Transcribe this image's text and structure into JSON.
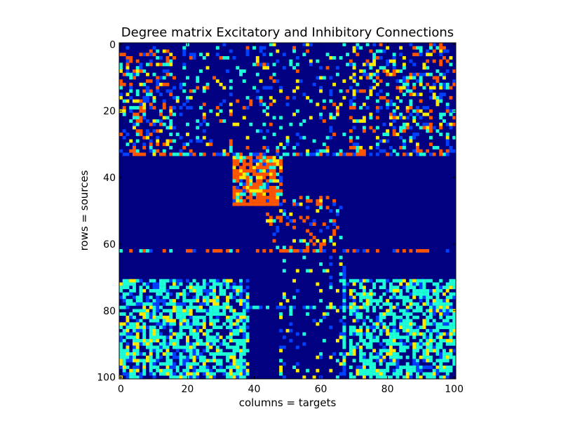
{
  "chart_data": {
    "type": "heatmap",
    "title": "Degree matrix Excitatory and Inhibitory Connections",
    "xlabel": "columns = targets",
    "ylabel": "rows = sources",
    "rows": 101,
    "cols": 101,
    "xlim": [
      0,
      100
    ],
    "ylim": [
      100,
      0
    ],
    "x_ticks": [
      0,
      20,
      40,
      60,
      80,
      100
    ],
    "y_ticks": [
      0,
      20,
      40,
      60,
      80,
      100
    ],
    "grid": false,
    "colormap": "jet",
    "colormap_stops": [
      "#000080",
      "#0040ff",
      "#1dffd7",
      "#ffeb00",
      "#ff5500"
    ],
    "background_value": 0,
    "blocks": [
      {
        "name": "excitatory-band-top",
        "rows": [
          0,
          33
        ],
        "cols": [
          0,
          100
        ],
        "density": 0.16,
        "values": [
          1,
          1,
          2,
          2,
          3,
          4
        ]
      },
      {
        "name": "excitatory-band-top-left",
        "rows": [
          2,
          33
        ],
        "cols": [
          0,
          16
        ],
        "density": 0.22,
        "values": [
          1,
          2,
          3,
          4,
          4
        ]
      },
      {
        "name": "excitatory-band-top-right",
        "rows": [
          0,
          33
        ],
        "cols": [
          69,
          100
        ],
        "density": 0.22,
        "values": [
          1,
          2,
          3,
          4
        ]
      },
      {
        "name": "row-33",
        "rows": [
          33,
          33
        ],
        "cols": [
          0,
          100
        ],
        "density": 0.5,
        "values": [
          1,
          2,
          4
        ]
      },
      {
        "name": "excitatory-cluster",
        "rows": [
          34,
          48
        ],
        "cols": [
          34,
          48
        ],
        "density": 0.82,
        "values": [
          4,
          4,
          4,
          4,
          1,
          2,
          3
        ]
      },
      {
        "name": "cluster-sparse",
        "rows": [
          46,
          62
        ],
        "cols": [
          44,
          66
        ],
        "density": 0.22,
        "values": [
          1,
          4,
          4,
          2,
          3
        ]
      },
      {
        "name": "row-62",
        "rows": [
          62,
          62
        ],
        "cols": [
          0,
          100
        ],
        "density": 0.45,
        "values": [
          4,
          4,
          4,
          1,
          2
        ]
      },
      {
        "name": "inhibitory-band-left",
        "rows": [
          71,
          100
        ],
        "cols": [
          0,
          38
        ],
        "density": 0.68,
        "values": [
          2,
          2,
          2,
          2,
          1,
          3
        ]
      },
      {
        "name": "inhibitory-band-right",
        "rows": [
          71,
          100
        ],
        "cols": [
          69,
          100
        ],
        "density": 0.65,
        "values": [
          2,
          2,
          2,
          2,
          1,
          3
        ]
      },
      {
        "name": "inhibitory-band-middle",
        "rows": [
          64,
          100
        ],
        "cols": [
          48,
          68
        ],
        "density": 0.12,
        "values": [
          1,
          2,
          3
        ]
      },
      {
        "name": "row-79",
        "rows": [
          79,
          79
        ],
        "cols": [
          38,
          68
        ],
        "density": 0.6,
        "values": [
          1,
          2
        ]
      }
    ],
    "vertical_lines": [
      {
        "col": 37,
        "rows": [
          78,
          100
        ],
        "values": [
          1,
          2
        ]
      },
      {
        "col": 67,
        "rows": [
          67,
          100
        ],
        "values": [
          1,
          2
        ]
      }
    ]
  }
}
